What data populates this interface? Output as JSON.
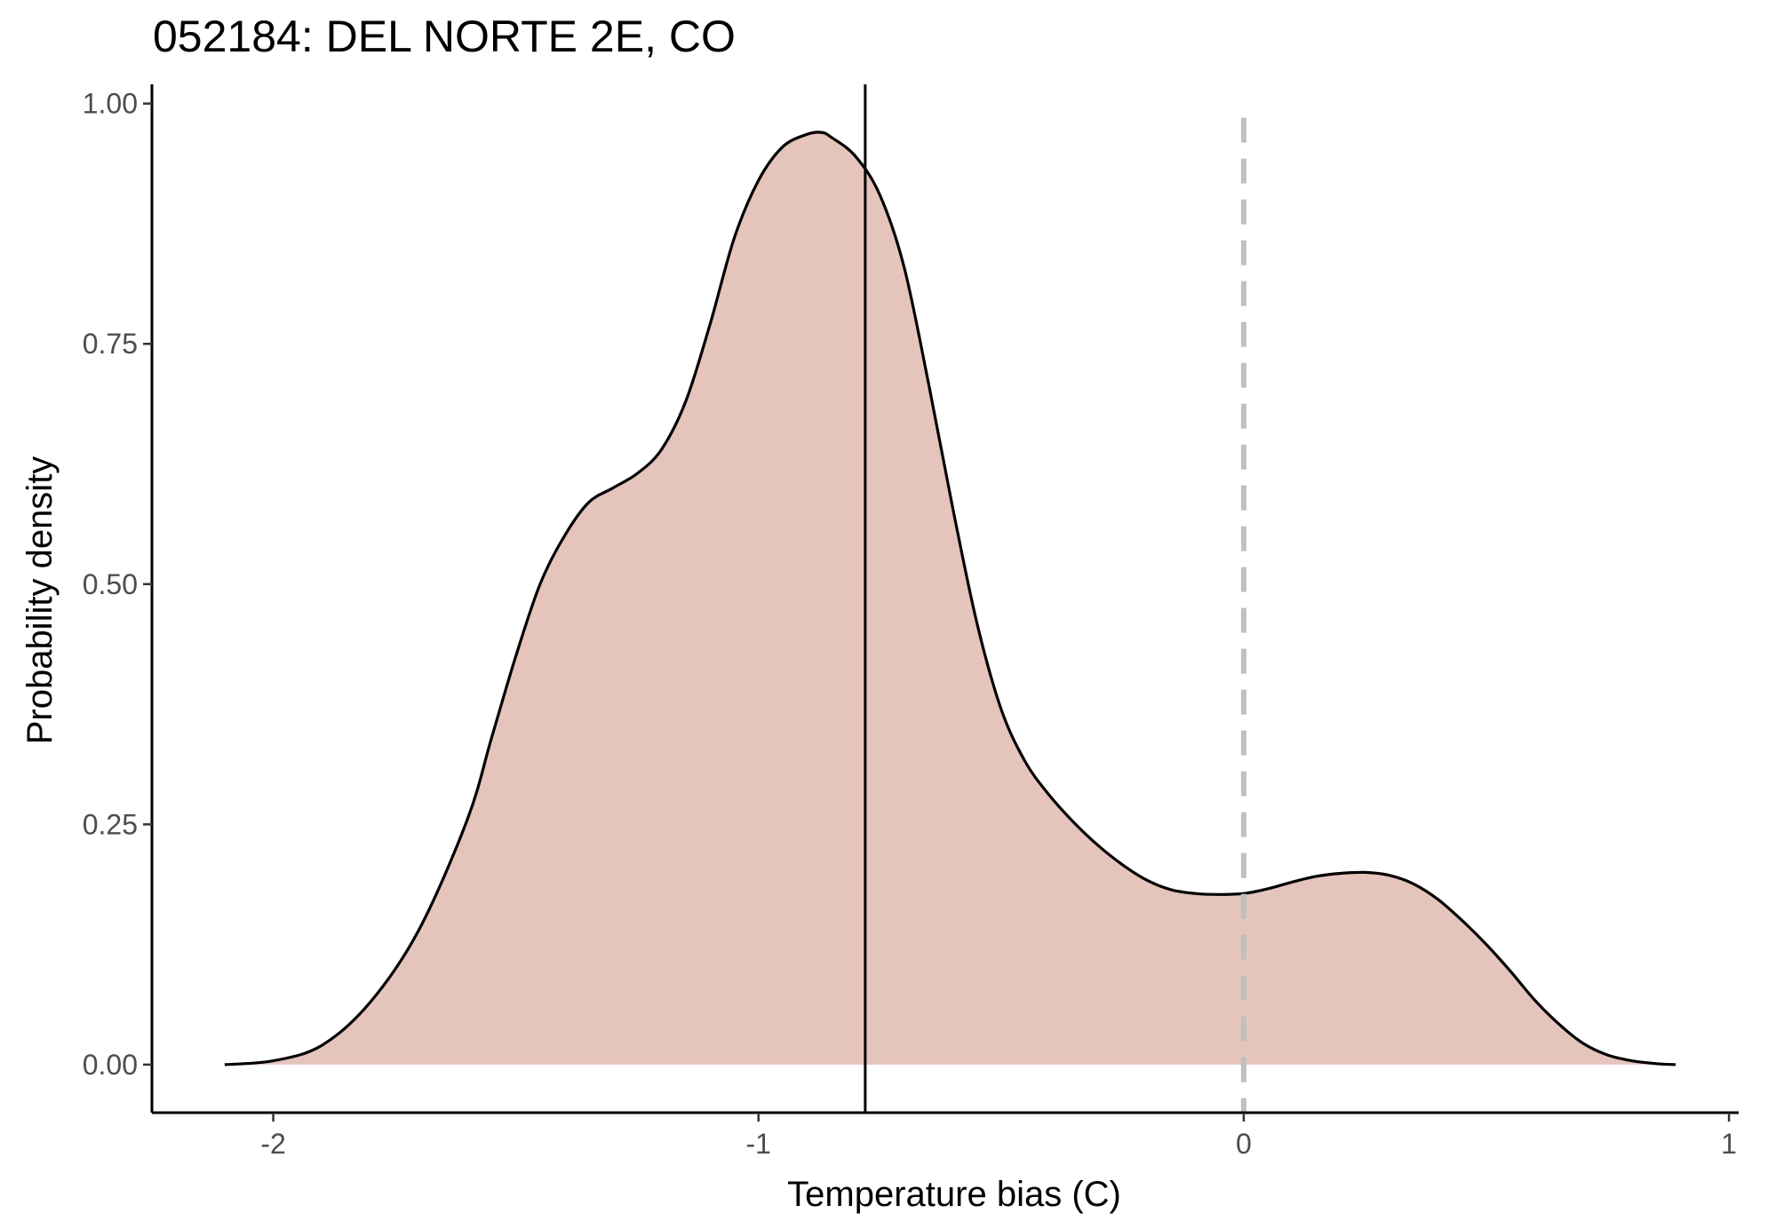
{
  "chart_data": {
    "type": "area",
    "title": "052184: DEL NORTE 2E, CO",
    "xlabel": "Temperature bias (C)",
    "ylabel": "Probability density",
    "xlim": [
      -2.25,
      1.02
    ],
    "ylim": [
      -0.05,
      1.02
    ],
    "x_ticks": [
      -2,
      -1,
      0,
      1
    ],
    "x_tick_labels": [
      "-2",
      "-1",
      "0",
      "1"
    ],
    "y_ticks": [
      0,
      0.25,
      0.5,
      0.75,
      1.0
    ],
    "y_tick_labels": [
      "0.00",
      "0.25",
      "0.50",
      "0.75",
      "1.00"
    ],
    "grid": false,
    "fill_color": "#e5c4bc",
    "line_color": "#000000",
    "reference_lines": [
      {
        "kind": "mean",
        "x": -0.78,
        "color": "#000000",
        "style": "solid"
      },
      {
        "kind": "zero",
        "x": 0.0,
        "color": "#c0c0c0",
        "style": "dashed"
      }
    ],
    "series": [
      {
        "x": [
          -2.1,
          -2.0,
          -1.9,
          -1.8,
          -1.7,
          -1.6,
          -1.55,
          -1.5,
          -1.45,
          -1.4,
          -1.35,
          -1.3,
          -1.25,
          -1.2,
          -1.15,
          -1.1,
          -1.05,
          -1.0,
          -0.95,
          -0.9,
          -0.87,
          -0.85,
          -0.8,
          -0.75,
          -0.7,
          -0.65,
          -0.6,
          -0.55,
          -0.5,
          -0.45,
          -0.4,
          -0.35,
          -0.3,
          -0.25,
          -0.2,
          -0.15,
          -0.1,
          -0.05,
          0.0,
          0.05,
          0.1,
          0.15,
          0.2,
          0.25,
          0.3,
          0.35,
          0.4,
          0.45,
          0.5,
          0.55,
          0.6,
          0.65,
          0.7,
          0.75,
          0.8,
          0.85,
          0.89
        ],
        "y": [
          0.0,
          0.004,
          0.02,
          0.065,
          0.14,
          0.255,
          0.34,
          0.425,
          0.5,
          0.55,
          0.585,
          0.6,
          0.615,
          0.64,
          0.69,
          0.77,
          0.86,
          0.92,
          0.955,
          0.968,
          0.97,
          0.965,
          0.945,
          0.905,
          0.83,
          0.71,
          0.58,
          0.46,
          0.37,
          0.315,
          0.28,
          0.252,
          0.228,
          0.208,
          0.192,
          0.182,
          0.178,
          0.177,
          0.178,
          0.183,
          0.19,
          0.196,
          0.199,
          0.2,
          0.197,
          0.188,
          0.172,
          0.15,
          0.125,
          0.097,
          0.067,
          0.042,
          0.022,
          0.01,
          0.004,
          0.001,
          0.0
        ]
      }
    ]
  }
}
